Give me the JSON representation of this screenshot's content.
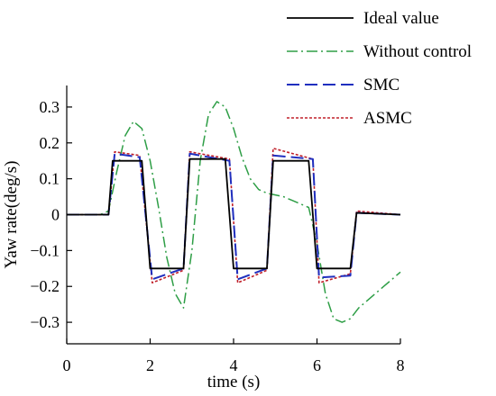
{
  "chart_data": {
    "type": "line",
    "xlabel": "time (s)",
    "ylabel": "Yaw rate(deg/s)",
    "xlim": [
      0,
      8
    ],
    "ylim": [
      -0.36,
      0.36
    ],
    "xticks": [
      0,
      2,
      4,
      6,
      8
    ],
    "xtick_labels": [
      "0",
      "2",
      "4",
      "6",
      "8"
    ],
    "yticks": [
      -0.3,
      -0.2,
      -0.1,
      0,
      0.1,
      0.2,
      0.3
    ],
    "ytick_labels": [
      "−0.3",
      "−0.2",
      "−0.1",
      "0",
      "0.1",
      "0.2",
      "0.3"
    ],
    "grid": false,
    "legend_position": "top-right, outside plot",
    "series": [
      {
        "name": "Ideal value",
        "color": "#000000",
        "style": "solid",
        "x": [
          0,
          1.0,
          1.1,
          1.8,
          2.0,
          2.8,
          2.95,
          3.8,
          4.0,
          4.8,
          4.95,
          5.8,
          6.0,
          6.8,
          6.95,
          8.0
        ],
        "y": [
          0,
          0,
          0.15,
          0.15,
          -0.15,
          -0.15,
          0.155,
          0.155,
          -0.15,
          -0.15,
          0.15,
          0.15,
          -0.15,
          -0.15,
          0.005,
          0
        ]
      },
      {
        "name": "Without control",
        "color": "#2e9e46",
        "style": "dash-dot",
        "x": [
          0,
          0.8,
          1.0,
          1.2,
          1.4,
          1.6,
          1.8,
          2.0,
          2.2,
          2.4,
          2.6,
          2.8,
          3.0,
          3.2,
          3.4,
          3.6,
          3.8,
          4.0,
          4.2,
          4.4,
          4.6,
          4.8,
          5.0,
          5.2,
          5.4,
          5.6,
          5.8,
          6.0,
          6.2,
          6.4,
          6.6,
          6.8,
          7.0,
          7.2,
          7.4,
          7.6,
          7.8,
          8.0
        ],
        "y": [
          0,
          0,
          0.01,
          0.12,
          0.22,
          0.26,
          0.24,
          0.15,
          0.02,
          -0.12,
          -0.22,
          -0.26,
          -0.1,
          0.15,
          0.28,
          0.315,
          0.3,
          0.24,
          0.16,
          0.1,
          0.07,
          0.06,
          0.055,
          0.05,
          0.04,
          0.03,
          0.02,
          -0.08,
          -0.22,
          -0.29,
          -0.3,
          -0.29,
          -0.26,
          -0.24,
          -0.22,
          -0.2,
          -0.18,
          -0.16
        ]
      },
      {
        "name": "SMC",
        "color": "#1f2fbf",
        "style": "dashed",
        "x": [
          0,
          1.0,
          1.15,
          1.75,
          2.05,
          2.8,
          2.95,
          3.9,
          4.1,
          4.8,
          4.95,
          5.9,
          6.05,
          6.8,
          6.95,
          8.0
        ],
        "y": [
          0,
          0,
          0.17,
          0.16,
          -0.18,
          -0.15,
          0.17,
          0.15,
          -0.18,
          -0.15,
          0.165,
          0.155,
          -0.175,
          -0.17,
          0.005,
          0
        ]
      },
      {
        "name": "ASMC",
        "color": "#c0202a",
        "style": "dotted",
        "x": [
          0,
          1.0,
          1.15,
          1.75,
          2.05,
          2.8,
          2.95,
          3.9,
          4.1,
          4.8,
          4.95,
          5.9,
          6.05,
          6.8,
          6.95,
          8.0
        ],
        "y": [
          0,
          0,
          0.175,
          0.165,
          -0.19,
          -0.155,
          0.175,
          0.155,
          -0.19,
          -0.155,
          0.185,
          0.155,
          -0.19,
          -0.165,
          0.01,
          0
        ]
      }
    ]
  }
}
